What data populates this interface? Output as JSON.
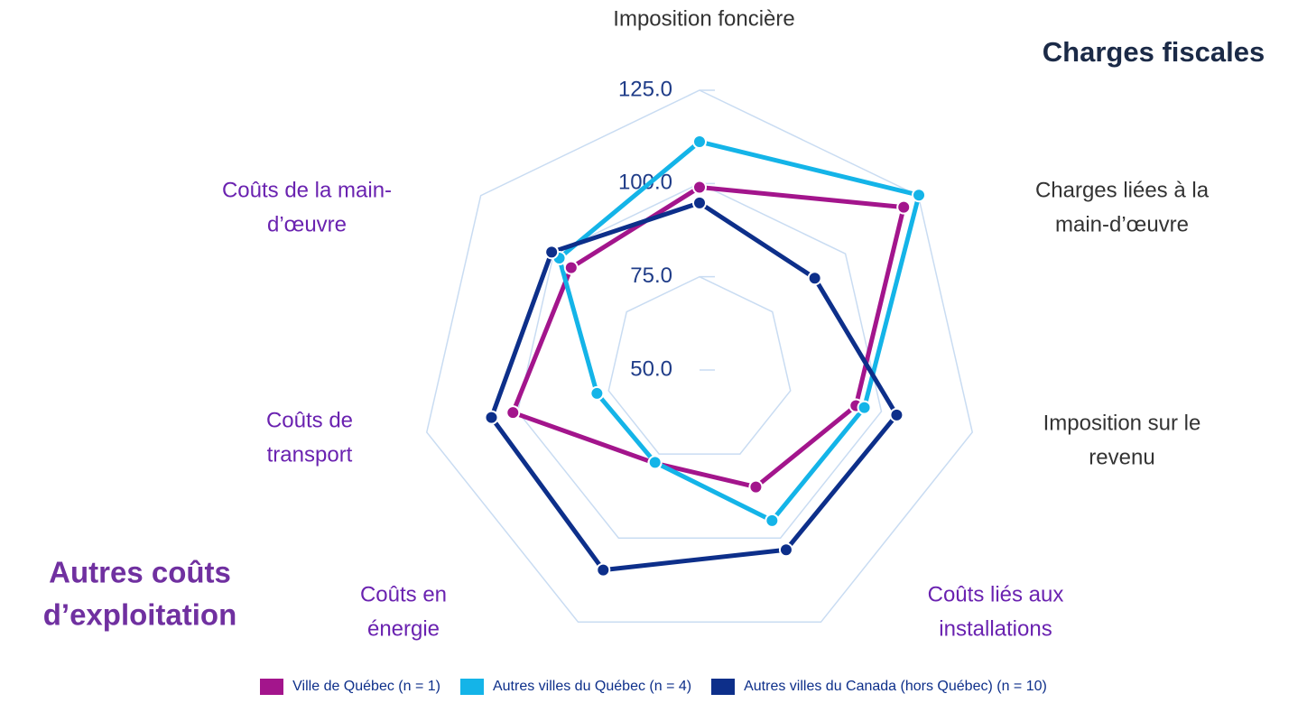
{
  "chart_data": {
    "type": "radar",
    "title": "Charges fiscales",
    "annotations": [
      [
        "Autres coûts",
        "d’exploitation"
      ]
    ],
    "categories": [
      [
        "Imposition foncière"
      ],
      [
        "Charges liées à la",
        "main-d’œuvre"
      ],
      [
        "Imposition sur le",
        "revenu"
      ],
      [
        "Coûts liés aux",
        "installations"
      ],
      [
        "Coûts en",
        "énergie"
      ],
      [
        "Coûts de",
        "transport"
      ],
      [
        "Coûts de la main-",
        "d’œuvre"
      ]
    ],
    "series": [
      {
        "name": "Ville de Québec (n = 1)",
        "color": "#a3158c",
        "values": [
          99,
          120,
          93,
          84.8,
          77.7,
          101.3,
          94
        ]
      },
      {
        "name": "Autres villes du Québec (n = 4)",
        "color": "#14b4e8",
        "values": [
          111.2,
          125.2,
          95.3,
          94.8,
          77.5,
          78.2,
          98.1
        ]
      },
      {
        "name": "Autres villes du Canada (hors Québec) (n = 10)",
        "color": "#0d2f8a",
        "values": [
          94.8,
          89.5,
          104.2,
          103.5,
          109.5,
          107.2,
          100.7
        ]
      }
    ],
    "ylim": [
      50,
      125
    ],
    "yticks": [
      {
        "value": 50,
        "label": "50.0"
      },
      {
        "value": 75,
        "label": "75.0"
      },
      {
        "value": 100,
        "label": "100.0"
      },
      {
        "value": 125,
        "label": "125.0"
      }
    ],
    "grid": true,
    "legend": "bottom"
  }
}
